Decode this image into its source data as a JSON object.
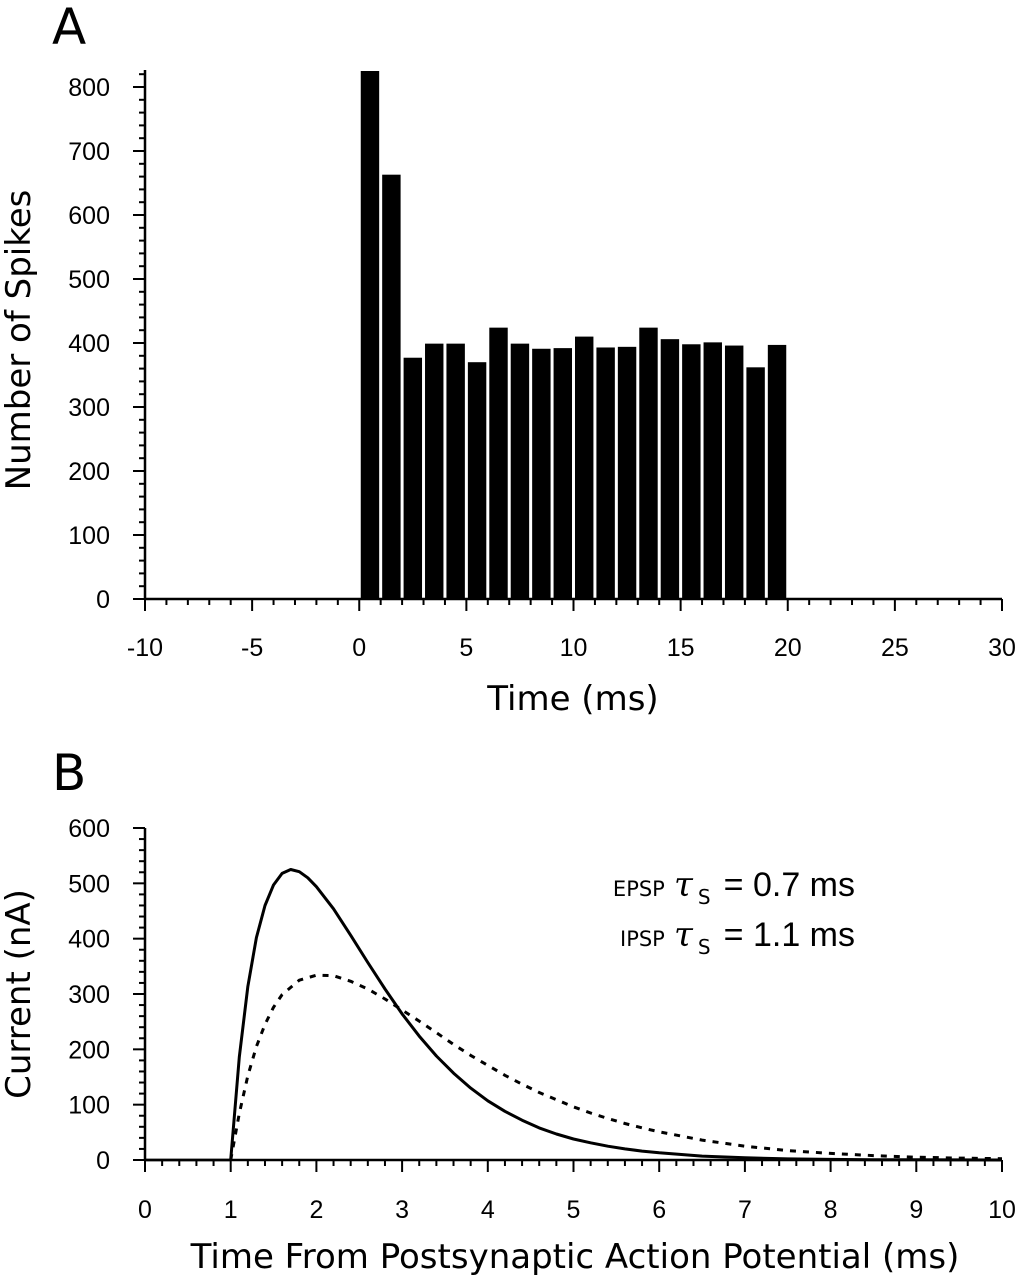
{
  "chart_data": [
    {
      "panel": "A",
      "type": "bar",
      "title": "",
      "xlabel": "Time (ms)",
      "ylabel": "Number of Spikes",
      "xlim": [
        -10,
        30
      ],
      "ylim": [
        0,
        820
      ],
      "xticks": [
        "-10",
        "-5",
        "0",
        "5",
        "10",
        "15",
        "20",
        "25",
        "30"
      ],
      "yticks": [
        "0",
        "100",
        "200",
        "300",
        "400",
        "500",
        "600",
        "700",
        "800"
      ],
      "bin_width": 1,
      "x": [
        0,
        1,
        2,
        3,
        4,
        5,
        6,
        7,
        8,
        9,
        10,
        11,
        12,
        13,
        14,
        15,
        16,
        17,
        18,
        19
      ],
      "values": [
        825,
        663,
        377,
        399,
        399,
        370,
        424,
        399,
        391,
        392,
        410,
        393,
        394,
        424,
        406,
        398,
        401,
        396,
        362,
        397
      ],
      "grid": false,
      "color": "#000000"
    },
    {
      "panel": "B",
      "type": "line",
      "title": "",
      "xlabel": "Time From Postsynaptic Action Potential (ms)",
      "ylabel": "Current (nA)",
      "xlim": [
        0,
        10
      ],
      "ylim": [
        0,
        600
      ],
      "xticks": [
        "0",
        "1",
        "2",
        "3",
        "4",
        "5",
        "6",
        "7",
        "8",
        "9",
        "10"
      ],
      "yticks": [
        "0",
        "100",
        "200",
        "300",
        "400",
        "500",
        "600"
      ],
      "grid": false,
      "annotations": [
        {
          "prefix": "EPSP",
          "symbol": "τ",
          "subscript": "S",
          "text": "= 0.7 ms"
        },
        {
          "prefix": "IPSP",
          "symbol": "τ",
          "subscript": "S",
          "text": "= 1.1 ms"
        }
      ],
      "series": [
        {
          "style": "solid",
          "x": [
            1.0,
            1.1,
            1.2,
            1.3,
            1.4,
            1.5,
            1.6,
            1.7,
            1.8,
            1.9,
            2.0,
            2.2,
            2.4,
            2.6,
            2.8,
            3.0,
            3.2,
            3.4,
            3.6,
            3.8,
            4.0,
            4.2,
            4.4,
            4.6,
            4.8,
            5.0,
            5.2,
            5.4,
            5.6,
            5.8,
            6.0,
            6.5,
            7.0,
            7.5,
            8.0,
            8.5,
            9.0,
            9.5,
            10.0
          ],
          "y": [
            0,
            186,
            313,
            402,
            460,
            497,
            518,
            525,
            521,
            510,
            494,
            454,
            406,
            357,
            309,
            264,
            224,
            188,
            157,
            130,
            107,
            88,
            72,
            58,
            47,
            38,
            31,
            25,
            20,
            16,
            13,
            7,
            4,
            2,
            1,
            0.5,
            0.3,
            0.15,
            0
          ]
        },
        {
          "style": "dashed",
          "x": [
            1.0,
            1.1,
            1.2,
            1.3,
            1.4,
            1.5,
            1.6,
            1.8,
            2.0,
            2.2,
            2.4,
            2.6,
            2.8,
            3.0,
            3.2,
            3.4,
            3.6,
            3.8,
            4.0,
            4.2,
            4.4,
            4.6,
            4.8,
            5.0,
            5.2,
            5.4,
            5.6,
            5.8,
            6.0,
            6.5,
            7.0,
            7.5,
            8.0,
            8.5,
            9.0,
            9.5,
            10.0
          ],
          "y": [
            0,
            84,
            152,
            205,
            245,
            276,
            299,
            325,
            334,
            333,
            323,
            309,
            291,
            271,
            251,
            230,
            209,
            189,
            171,
            153,
            137,
            122,
            109,
            96,
            85,
            75,
            66,
            58,
            51,
            36,
            25,
            17,
            12,
            8,
            5,
            3.5,
            2.3
          ]
        }
      ]
    }
  ],
  "panels": {
    "a": {
      "label": "A"
    },
    "b": {
      "label": "B"
    }
  }
}
